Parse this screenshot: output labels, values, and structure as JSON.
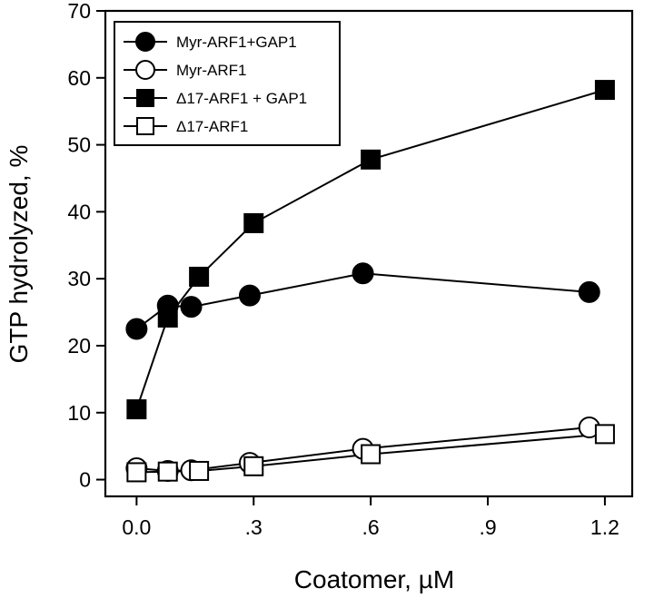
{
  "chart_data": {
    "type": "scatter",
    "title": "",
    "xlabel": "Coatomer, µM",
    "ylabel": "GTP hydrolyzed, %",
    "xlim": [
      -0.08,
      1.27
    ],
    "ylim": [
      -2.5,
      70
    ],
    "x_ticks": [
      0.0,
      0.3,
      0.6,
      0.9,
      1.2
    ],
    "x_tick_labels": [
      "0.0",
      ".3",
      ".6",
      ".9",
      "1.2"
    ],
    "y_ticks": [
      0,
      10,
      20,
      30,
      40,
      50,
      60,
      70
    ],
    "y_tick_labels": [
      "0",
      "10",
      "20",
      "30",
      "40",
      "50",
      "60",
      "70"
    ],
    "grid": false,
    "legend_position": "top-left",
    "series": [
      {
        "name": "Myr-ARF1+GAP1",
        "marker": "circle",
        "fill": "filled",
        "color": "#000000",
        "x": [
          0.0,
          0.08,
          0.14,
          0.29,
          0.58,
          1.16
        ],
        "y": [
          22.5,
          26.0,
          25.8,
          27.5,
          30.8,
          28.0
        ]
      },
      {
        "name": "Myr-ARF1",
        "marker": "circle",
        "fill": "open",
        "color": "#000000",
        "x": [
          0.0,
          0.08,
          0.14,
          0.29,
          0.58,
          1.16
        ],
        "y": [
          1.7,
          1.3,
          1.4,
          2.5,
          4.6,
          7.8
        ]
      },
      {
        "name": "Δ17-ARF1 + GAP1",
        "marker": "square",
        "fill": "filled",
        "color": "#000000",
        "x": [
          0.0,
          0.08,
          0.16,
          0.3,
          0.6,
          1.2
        ],
        "y": [
          10.5,
          24.2,
          30.3,
          38.3,
          47.8,
          58.2
        ]
      },
      {
        "name": "Δ17-ARF1",
        "marker": "square",
        "fill": "open",
        "color": "#000000",
        "x": [
          0.0,
          0.08,
          0.16,
          0.3,
          0.6,
          1.2
        ],
        "y": [
          1.1,
          1.2,
          1.3,
          2.0,
          3.8,
          6.8
        ]
      }
    ]
  }
}
